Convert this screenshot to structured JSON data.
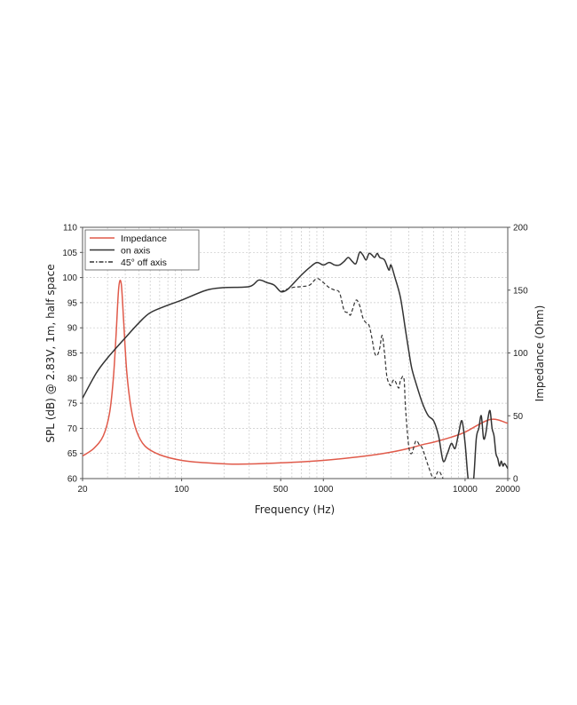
{
  "chart_data": {
    "type": "line",
    "xlabel": "Frequency (Hz)",
    "ylabel": "SPL (dB) @ 2.83V, 1m, half space",
    "y2label": "Impedance (Ohm)",
    "xscale": "log",
    "xlim": [
      20,
      20000
    ],
    "ylim": [
      60,
      110
    ],
    "y2lim": [
      0,
      200
    ],
    "grid": true,
    "legend_position": "top-left",
    "x_ticks": [
      20,
      100,
      500,
      1000,
      10000,
      20000
    ],
    "x_tick_labels": [
      "20",
      "100",
      "500",
      "1000",
      "10000",
      "20000"
    ],
    "y_ticks": [
      60,
      65,
      70,
      75,
      80,
      85,
      90,
      95,
      100,
      105,
      110
    ],
    "y_tick_labels": [
      "60",
      "65",
      "70",
      "75",
      "80",
      "85",
      "90",
      "95",
      "100",
      "105",
      "110"
    ],
    "y2_ticks": [
      0,
      50,
      100,
      150,
      200
    ],
    "y2_tick_labels": [
      "0",
      "50",
      "100",
      "150",
      "200"
    ],
    "series": [
      {
        "name": "Impedance",
        "axis": "right",
        "color": "#e05a4a",
        "style": "solid",
        "x": [
          20,
          24,
          28,
          31,
          33,
          34.5,
          36,
          37.5,
          39,
          41,
          44,
          48,
          55,
          70,
          100,
          150,
          250,
          500,
          1000,
          2000,
          3000,
          4000,
          5000,
          6000,
          8000,
          10000,
          15000,
          20000
        ],
        "y": [
          18,
          24,
          34,
          52,
          80,
          115,
          152,
          155,
          125,
          85,
          56,
          38,
          26,
          19,
          14.5,
          12.5,
          11.5,
          12.5,
          14.5,
          18,
          21,
          24,
          27,
          29,
          33,
          37,
          47,
          44
        ]
      },
      {
        "name": "on axis",
        "axis": "left",
        "color": "#333333",
        "style": "solid",
        "x": [
          20,
          25,
          30,
          40,
          50,
          60,
          80,
          100,
          150,
          200,
          300,
          350,
          400,
          450,
          500,
          550,
          600,
          700,
          800,
          900,
          1000,
          1100,
          1200,
          1300,
          1400,
          1500,
          1600,
          1700,
          1800,
          1900,
          2000,
          2100,
          2200,
          2300,
          2400,
          2500,
          2700,
          2900,
          3000,
          3200,
          3500,
          3800,
          4000,
          4200,
          4500,
          5000,
          5500,
          6000,
          6500,
          7000,
          7500,
          8000,
          8500,
          9000,
          9500,
          10000,
          10500,
          11000,
          11500,
          12000,
          12500,
          13000,
          13500,
          14000,
          14500,
          15000,
          15500,
          16000,
          16500,
          17000,
          17500,
          18000,
          18500,
          19000,
          20000
        ],
        "y": [
          76,
          81,
          84,
          88,
          91,
          93,
          94.5,
          95.5,
          97.5,
          98,
          98.2,
          99.5,
          99,
          98.5,
          97.2,
          97.5,
          98.5,
          100.5,
          102,
          103,
          102.5,
          103,
          102.5,
          102.5,
          103.2,
          104,
          103.2,
          102.8,
          105,
          104.5,
          103.5,
          104.8,
          104.5,
          104,
          104.8,
          104,
          103.5,
          101.5,
          102.5,
          100,
          96,
          89.5,
          85.5,
          82,
          79,
          75,
          72.5,
          71.5,
          68.5,
          63.5,
          65,
          67,
          66,
          69,
          71.5,
          67,
          60,
          58,
          60,
          68,
          70,
          72.5,
          68,
          69,
          72,
          73.5,
          70,
          68.5,
          65,
          64,
          62.5,
          63.5,
          62.5,
          63,
          62
        ]
      },
      {
        "name": "45° off axis",
        "axis": "left",
        "color": "#333333",
        "style": "dashed",
        "x": [
          500,
          600,
          700,
          800,
          900,
          1000,
          1100,
          1200,
          1300,
          1400,
          1500,
          1550,
          1600,
          1700,
          1800,
          1900,
          2000,
          2100,
          2200,
          2300,
          2400,
          2500,
          2600,
          2700,
          2800,
          2900,
          3000,
          3100,
          3200,
          3400,
          3500,
          3700,
          3800,
          4000,
          4200,
          4500,
          4800,
          5000,
          5500,
          6000,
          6500,
          7000,
          7500,
          8000
        ],
        "y": [
          97.2,
          98,
          98.2,
          98.5,
          99.8,
          99,
          98,
          97.5,
          97,
          93.5,
          93,
          92.5,
          93.5,
          95.5,
          94.5,
          92,
          91,
          90.5,
          88,
          85,
          84.5,
          86,
          88.5,
          85,
          80.5,
          79,
          78.5,
          79.5,
          79.5,
          78,
          79.5,
          80,
          74,
          66.5,
          65,
          67.5,
          66.5,
          66,
          62.5,
          60,
          61.5,
          60,
          59,
          58
        ]
      }
    ]
  }
}
